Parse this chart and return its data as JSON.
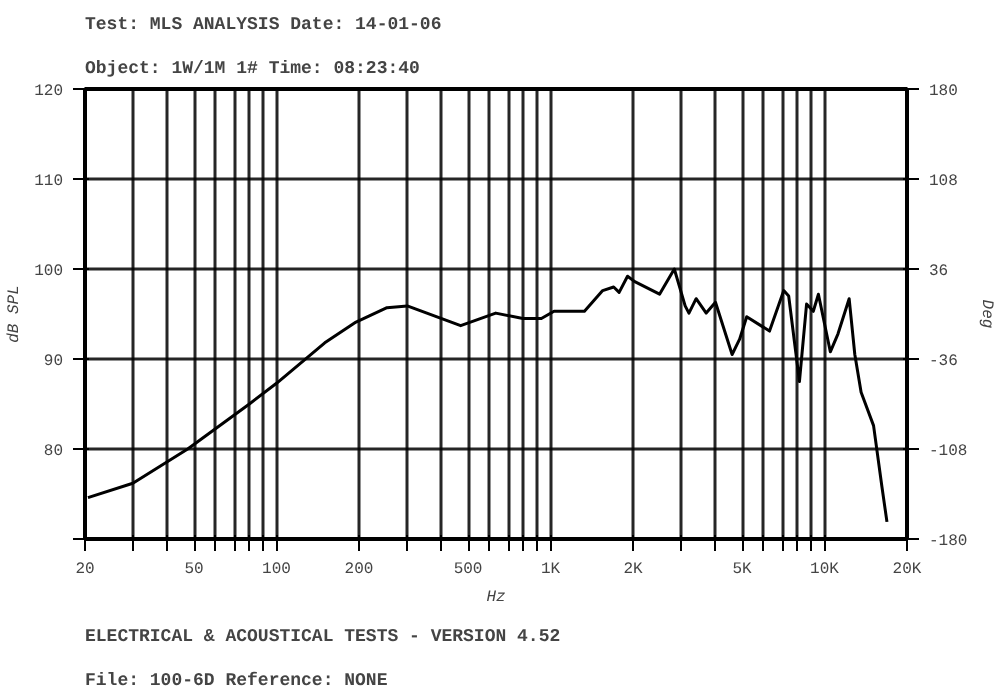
{
  "chart_data": {
    "type": "line",
    "title": "Test: MLS ANALYSIS          Date: 14-01-06",
    "subtitle": "Object: 1W/1M  1#          Time: 08:23:40",
    "xlabel": "Hz",
    "ylabel": "dB SPL",
    "y2label": "Deg",
    "annotations": [
      "File: 100-6D     Reference: NONE",
      "ELECTRICAL & ACOUSTICAL TESTS - VERSION 4.52"
    ],
    "x": [
      20.5,
      29.9,
      47.4,
      79.6,
      100,
      150,
      195,
      253,
      300,
      470,
      631,
      793,
      926,
      1030,
      1330,
      1550,
      1700,
      1780,
      1910,
      2030,
      2500,
      2830,
      3100,
      3200,
      3400,
      3700,
      4000,
      4600,
      4900,
      5200,
      6300,
      7100,
      7400,
      8100,
      8600,
      9100,
      9500,
      10500,
      11200,
      12300,
      12900,
      13600,
      15100,
      16200,
      16900
    ],
    "series": [
      {
        "color": "#000000",
        "values": [
          74.6,
          76.2,
          80,
          85,
          87.3,
          91.8,
          94.1,
          95.7,
          95.9,
          93.7,
          95.1,
          94.5,
          94.5,
          95.3,
          95.3,
          97.6,
          98,
          97.4,
          99.2,
          98.6,
          97.2,
          100,
          95.9,
          95.1,
          96.7,
          95.1,
          96.3,
          90.5,
          92.2,
          94.7,
          93.1,
          97.6,
          97,
          87.5,
          96.1,
          95.3,
          97.2,
          90.8,
          92.8,
          96.7,
          90.5,
          86.3,
          82.6,
          75.8,
          71.9
        ]
      }
    ],
    "log": "x",
    "xlim": [
      20,
      20000
    ],
    "xticks": [
      20,
      {
        "value": 30,
        "label": null
      },
      {
        "value": 40,
        "label": null
      },
      50,
      {
        "value": 60,
        "label": null
      },
      {
        "value": 70,
        "label": null
      },
      {
        "value": 80,
        "label": null
      },
      {
        "value": 90,
        "label": null
      },
      100,
      200,
      {
        "value": 300,
        "label": null
      },
      {
        "value": 400,
        "label": null
      },
      500,
      {
        "value": 600,
        "label": null
      },
      {
        "value": 700,
        "label": null
      },
      {
        "value": 800,
        "label": null
      },
      {
        "value": 900,
        "label": null
      },
      {
        "value": 1000,
        "label": "1K"
      },
      {
        "value": 2000,
        "label": "2K"
      },
      {
        "value": 3000,
        "label": null
      },
      {
        "value": 4000,
        "label": null
      },
      {
        "value": 5000,
        "label": "5K"
      },
      {
        "value": 6000,
        "label": null
      },
      {
        "value": 7000,
        "label": null
      },
      {
        "value": 8000,
        "label": null
      },
      {
        "value": 9000,
        "label": null
      },
      {
        "value": 10000,
        "label": "10K"
      },
      {
        "value": 20000,
        "label": "20K"
      }
    ],
    "ylim": [
      70,
      120
    ],
    "yticks": [
      {
        "value": 70,
        "label": null
      },
      80,
      90,
      100,
      110,
      120
    ],
    "y2lim": [
      -180,
      180
    ],
    "y2ticks": [
      -180,
      -108,
      -36,
      36,
      108,
      180
    ],
    "grid": true,
    "line_style": "solid"
  }
}
